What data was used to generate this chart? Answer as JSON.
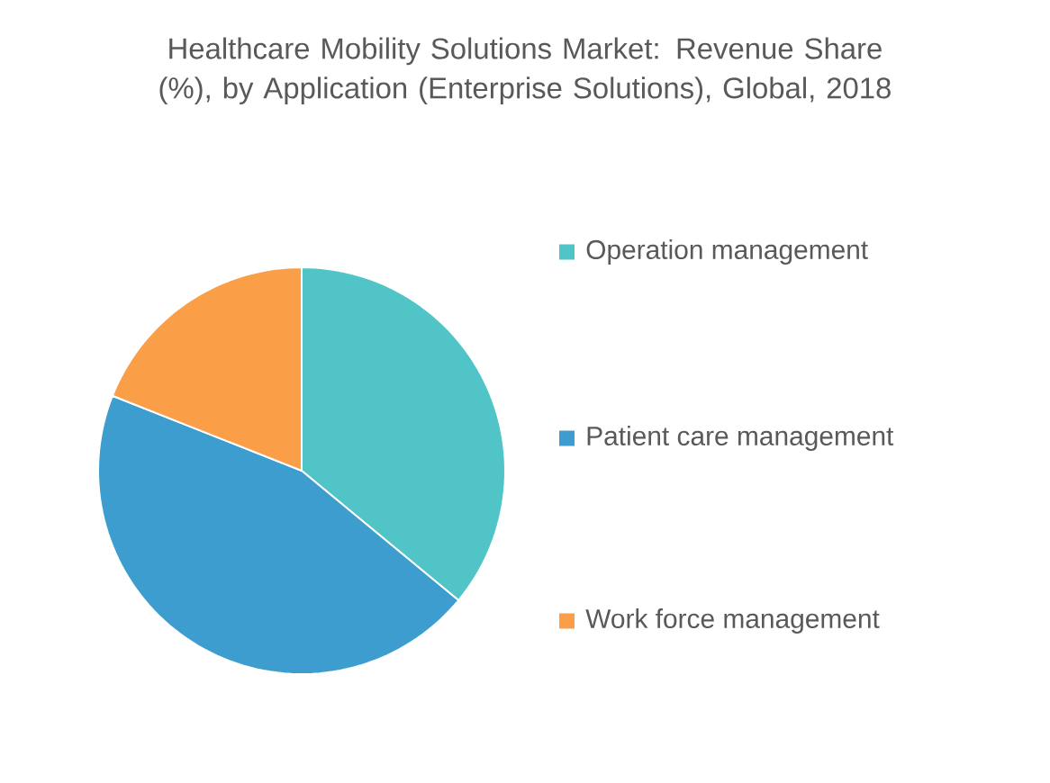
{
  "chart_data": {
    "type": "pie",
    "title": "Healthcare Mobility Solutions Market: Revenue Share (%), by Application (Enterprise Solutions), Global, 2018",
    "categories": [
      "Operation management",
      "Patient care management",
      "Work force management"
    ],
    "values": [
      36,
      45,
      19
    ],
    "colors": [
      "#50c4c6",
      "#3c9dce",
      "#fb9e48"
    ],
    "legend": "right"
  }
}
